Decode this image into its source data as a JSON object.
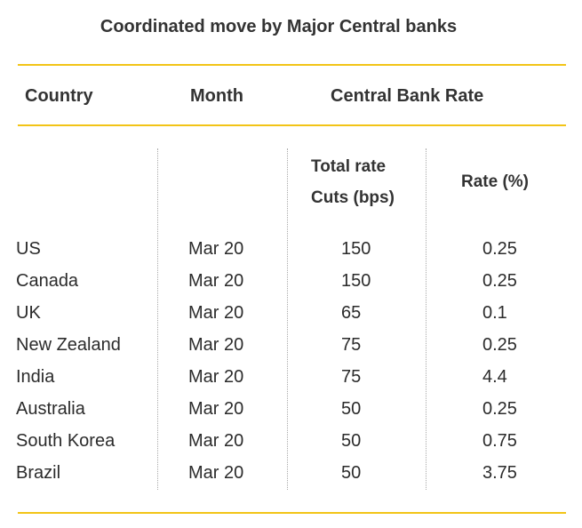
{
  "title": "Coordinated move by Major Central banks",
  "table": {
    "headers": [
      "Country",
      "Month",
      "Central Bank Rate"
    ],
    "subheaders": [
      "Total rate Cuts (bps)",
      "Rate (%)"
    ],
    "rows": [
      [
        "US",
        "Mar 20",
        "150",
        "0.25"
      ],
      [
        "Canada",
        "Mar 20",
        "150",
        "0.25"
      ],
      [
        "UK",
        "Mar 20",
        "65",
        "0.1"
      ],
      [
        "New Zealand",
        "Mar 20",
        "75",
        "0.25"
      ],
      [
        "India",
        "Mar 20",
        "75",
        "4.4"
      ],
      [
        "Australia",
        "Mar 20",
        "50",
        "0.25"
      ],
      [
        "South Korea",
        "Mar 20",
        "50",
        "0.75"
      ],
      [
        "Brazil",
        "Mar 20",
        "50",
        "3.75"
      ]
    ]
  }
}
